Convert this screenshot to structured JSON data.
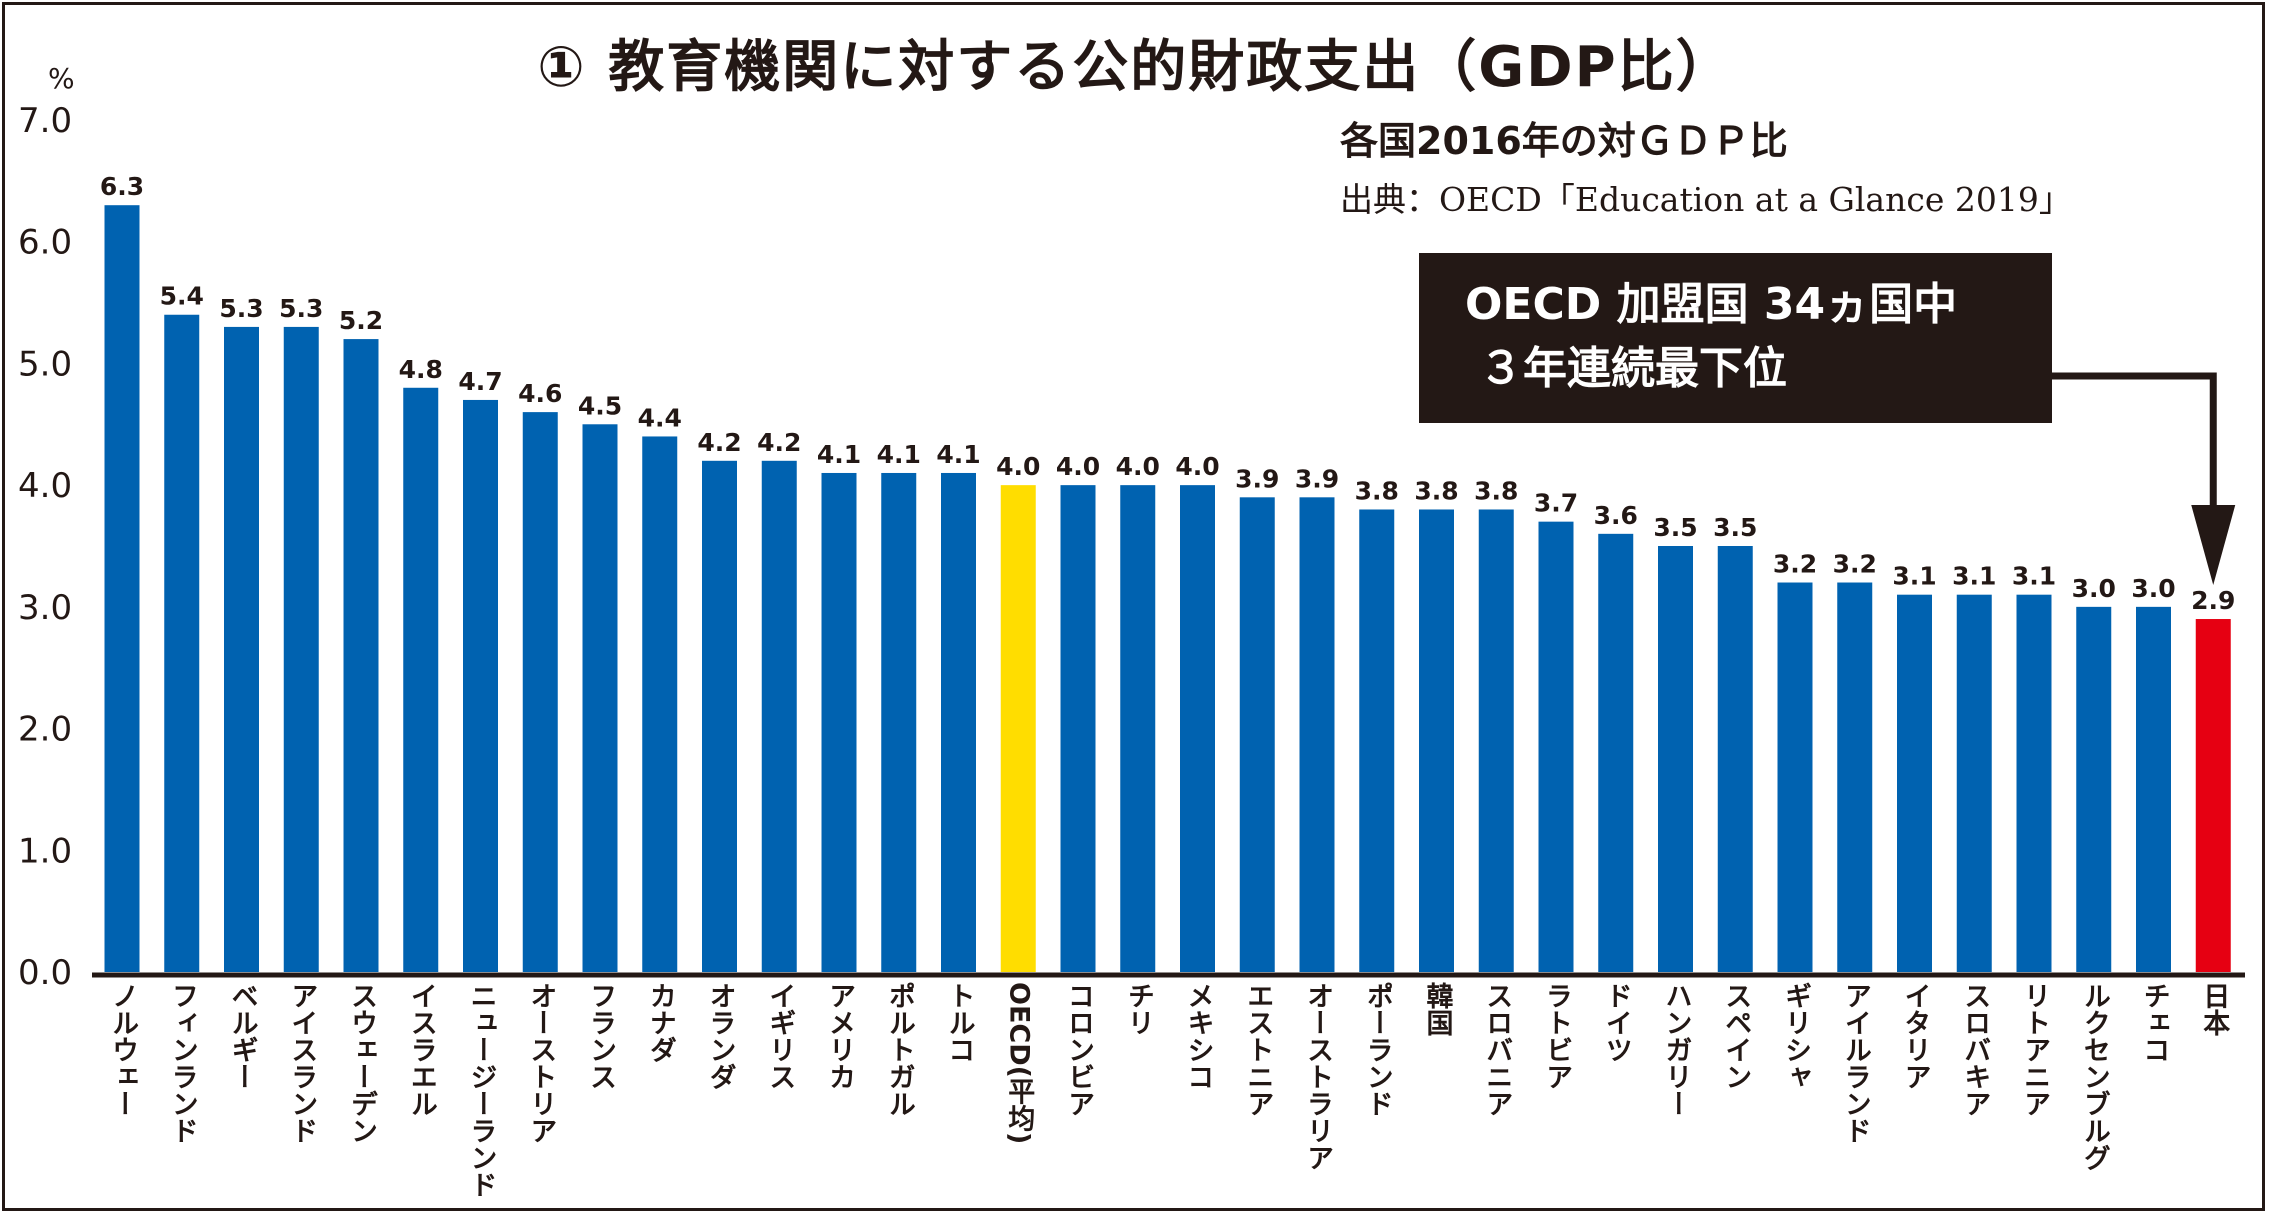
{
  "chart_data": {
    "type": "bar",
    "title": "① 教育機関に対する公的財政支出（GDP比）",
    "subtitle": "各国2016年の対ＧＤＰ比",
    "source": "出典：OECD「Education at a Glance 2019」",
    "ylabel": "%",
    "xlabel": "",
    "ylim": [
      0,
      7
    ],
    "yticks": [
      "0.0",
      "1.0",
      "2.0",
      "3.0",
      "4.0",
      "5.0",
      "6.0",
      "7.0"
    ],
    "categories": [
      "ノルウェー",
      "フィンランド",
      "ベルギー",
      "アイスランド",
      "スウェーデン",
      "イスラエル",
      "ニュージーランド",
      "オーストリア",
      "フランス",
      "カナダ",
      "オランダ",
      "イギリス",
      "アメリカ",
      "ポルトガル",
      "トルコ",
      "OECD(平均)",
      "コロンビア",
      "チリ",
      "メキシコ",
      "エストニア",
      "オーストラリア",
      "ポーランド",
      "韓国",
      "スロバニア",
      "ラトビア",
      "ドイツ",
      "ハンガリー",
      "スペイン",
      "ギリシャ",
      "アイルランド",
      "イタリア",
      "スロバキア",
      "リトアニア",
      "ルクセンブルグ",
      "チェコ",
      "日本"
    ],
    "values": [
      6.3,
      5.4,
      5.3,
      5.3,
      5.2,
      4.8,
      4.7,
      4.6,
      4.5,
      4.4,
      4.2,
      4.2,
      4.1,
      4.1,
      4.1,
      4.0,
      4.0,
      4.0,
      4.0,
      3.9,
      3.9,
      3.8,
      3.8,
      3.8,
      3.7,
      3.6,
      3.5,
      3.5,
      3.2,
      3.2,
      3.1,
      3.1,
      3.1,
      3.0,
      3.0,
      2.9
    ],
    "value_labels": [
      "6.3",
      "5.4",
      "5.3",
      "5.3",
      "5.2",
      "4.8",
      "4.7",
      "4.6",
      "4.5",
      "4.4",
      "4.2",
      "4.2",
      "4.1",
      "4.1",
      "4.1",
      "4.0",
      "4.0",
      "4.0",
      "4.0",
      "3.9",
      "3.9",
      "3.8",
      "3.8",
      "3.8",
      "3.7",
      "3.6",
      "3.5",
      "3.5",
      "3.2",
      "3.2",
      "3.1",
      "3.1",
      "3.1",
      "3.0",
      "3.0",
      "2.9"
    ],
    "highlight": {
      "OECD(平均)": "#ffdd00",
      "日本": "#e60012"
    },
    "bar_color": "#0062b0",
    "grid": false,
    "annotation": [
      "OECD 加盟国 34ヵ国中",
      "３年連続最下位"
    ]
  }
}
